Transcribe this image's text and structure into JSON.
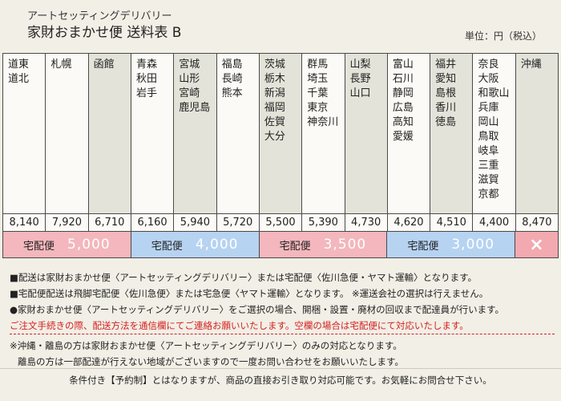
{
  "header": {
    "subtitle": "アートセッティングデリバリー",
    "title": "家財おまかせ便 送料表 B",
    "unit": "単位：円（税込）"
  },
  "zones": [
    {
      "prefs": [
        "道東",
        "道北"
      ],
      "price": "8,140",
      "shaded": false
    },
    {
      "prefs": [
        "札幌"
      ],
      "price": "7,920",
      "shaded": false
    },
    {
      "prefs": [
        "函館"
      ],
      "price": "6,710",
      "shaded": true
    },
    {
      "prefs": [
        "青森",
        "秋田",
        "岩手"
      ],
      "price": "6,160",
      "shaded": false
    },
    {
      "prefs": [
        "宮城",
        "山形",
        "宮崎",
        "鹿児島"
      ],
      "price": "5,940",
      "shaded": true
    },
    {
      "prefs": [
        "福島",
        "長崎",
        "熊本"
      ],
      "price": "5,720",
      "shaded": false
    },
    {
      "prefs": [
        "茨城",
        "栃木",
        "新潟",
        "福岡",
        "佐賀",
        "大分"
      ],
      "price": "5,500",
      "shaded": true
    },
    {
      "prefs": [
        "群馬",
        "埼玉",
        "千葉",
        "東京",
        "神奈川"
      ],
      "price": "5,390",
      "shaded": false
    },
    {
      "prefs": [
        "山梨",
        "長野",
        "山口"
      ],
      "price": "4,730",
      "shaded": true
    },
    {
      "prefs": [
        "富山",
        "石川",
        "静岡",
        "広島",
        "高知",
        "愛媛"
      ],
      "price": "4,620",
      "shaded": false
    },
    {
      "prefs": [
        "福井",
        "愛知",
        "島根",
        "香川",
        "徳島"
      ],
      "price": "4,510",
      "shaded": true
    },
    {
      "prefs": [
        "奈良",
        "大阪",
        "和歌山",
        "兵庫",
        "岡山",
        "鳥取",
        "岐阜",
        "三重",
        "滋賀",
        "京都"
      ],
      "price": "4,400",
      "shaded": false
    },
    {
      "prefs": [
        "沖縄"
      ],
      "price": "8,470",
      "shaded": true
    }
  ],
  "bands": [
    {
      "label": "宅配便",
      "amount": "5,000",
      "span": 3,
      "color": "pink"
    },
    {
      "label": "宅配便",
      "amount": "4,000",
      "span": 3,
      "color": "blue"
    },
    {
      "label": "宅配便",
      "amount": "3,500",
      "span": 3,
      "color": "pink"
    },
    {
      "label": "宅配便",
      "amount": "3,000",
      "span": 3,
      "color": "blue"
    },
    {
      "label": "",
      "amount": "×",
      "span": 1,
      "color": "xband"
    }
  ],
  "notes": {
    "n1": "■配送は家財おまかせ便〈アートセッティングデリバリー〉または宅配便〈佐川急便・ヤマト運輸〉となります。",
    "n2": "■宅配便配送は飛脚宅配便〈佐川急便〉または宅急便〈ヤマト運輸〉となります。 ※運送会社の選択は行えません。",
    "n3": "●家財おまかせ便〈アートセッティングデリバリー〉をご選択の場合、開梱・設置・廃材の回収まで配達員が行います。",
    "n4": "ご注文手続きの際、配送方法を通信欄にてご連絡お願いいたします。空欄の場合は宅配便にて対応いたします。",
    "n5": "※沖縄・離島の方は家財おまかせ便〈アートセッティングデリバリー〉のみの対応となります。",
    "n6": "離島の方は一部配達が行えない地域がございますので一度お問い合わせをお願いいたします。"
  },
  "footer": {
    "text": "条件付き【予約制】とはなりますが、商品の直接お引き取り対応可能です。お気軽にお問合せ下さい。"
  }
}
